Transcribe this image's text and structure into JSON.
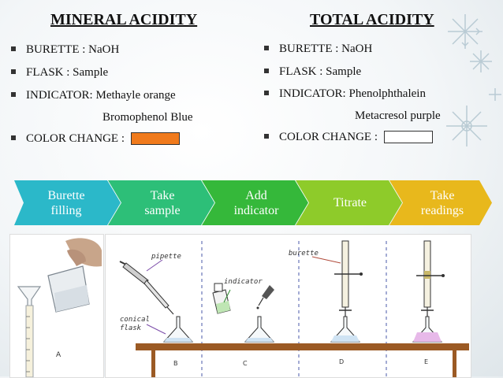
{
  "mineral": {
    "title": "MINERAL ACIDITY",
    "burette": "BURETTE : NaOH",
    "flask": "FLASK  : Sample",
    "indicator": "INDICATOR: Methayle orange",
    "indicator_alt": "Bromophenol Blue",
    "color_change": "COLOR CHANGE :",
    "color_hex": "#f07a1c"
  },
  "total": {
    "title": "TOTAL ACIDITY",
    "burette": "BURETTE : NaOH",
    "flask": "FLASK  : Sample",
    "indicator": "INDICATOR: Phenolphthalein",
    "indicator_alt": "Metacresol purple",
    "color_change": "COLOR CHANGE :",
    "color_hex": "#ffffff"
  },
  "steps": [
    {
      "line1": "Burette",
      "line2": "filling",
      "color": "#2bb8c9"
    },
    {
      "line1": "Take",
      "line2": "sample",
      "color": "#2dbf78"
    },
    {
      "line1": "Add",
      "line2": "indicator",
      "color": "#35b83a"
    },
    {
      "line1": "Titrate",
      "line2": "",
      "color": "#8ecb2a"
    },
    {
      "line1": "Take",
      "line2": "readings",
      "color": "#e8b81c"
    }
  ],
  "diagram": {
    "pipette": "pipette",
    "indicator": "indicator",
    "burette": "burette",
    "conical_flask_1": "conical",
    "conical_flask_2": "flask",
    "photo_label": "A",
    "label_b": "B",
    "label_c": "C",
    "label_d": "D",
    "label_e": "E"
  }
}
